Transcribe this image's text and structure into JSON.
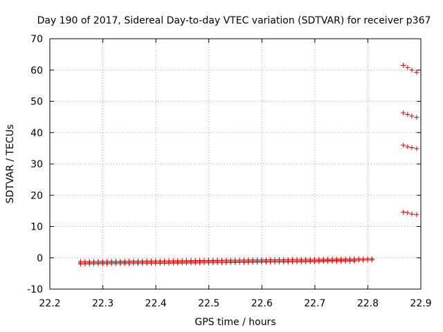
{
  "chart_data": {
    "type": "scatter",
    "title": "Day 190 of 2017, Sidereal Day-to-day VTEC variation (SDTVAR) for receiver p367",
    "xlabel": "GPS time / hours",
    "ylabel": "SDTVAR / TECUs",
    "xlim": [
      22.2,
      22.9
    ],
    "ylim": [
      -10,
      70
    ],
    "x_ticks": [
      "22.2",
      "22.3",
      "22.4",
      "22.5",
      "22.6",
      "22.7",
      "22.8",
      "22.9"
    ],
    "y_ticks": [
      "-10",
      "0",
      "10",
      "20",
      "30",
      "40",
      "50",
      "60",
      "70"
    ],
    "x_tick_values": [
      22.2,
      22.3,
      22.4,
      22.5,
      22.6,
      22.7,
      22.8,
      22.9
    ],
    "y_tick_values": [
      -10,
      0,
      10,
      20,
      30,
      40,
      50,
      60,
      70
    ],
    "grid": true,
    "marker": "plus",
    "color": "#cc0000",
    "series": [
      {
        "points": [
          [
            22.867,
            61.5
          ],
          [
            22.875,
            60.8
          ],
          [
            22.883,
            60.0
          ],
          [
            22.892,
            59.3
          ],
          [
            22.867,
            46.3
          ],
          [
            22.875,
            45.8
          ],
          [
            22.883,
            45.3
          ],
          [
            22.892,
            44.9
          ],
          [
            22.867,
            36.0
          ],
          [
            22.875,
            35.5
          ],
          [
            22.883,
            35.2
          ],
          [
            22.892,
            34.9
          ],
          [
            22.867,
            14.6
          ],
          [
            22.875,
            14.4
          ],
          [
            22.883,
            14.0
          ],
          [
            22.892,
            13.8
          ]
        ]
      },
      {
        "x_start": 22.258,
        "x_end": 22.808,
        "step": 0.00833,
        "y_start": -1.6,
        "y_end": -0.7
      },
      {
        "x_start": 22.258,
        "x_end": 22.808,
        "step": 0.00833,
        "y_start": -1.2,
        "y_end": -0.3
      },
      {
        "x_start": 22.258,
        "x_end": 22.775,
        "step": 0.00833,
        "y_start": -2.0,
        "y_end": -1.1
      }
    ]
  }
}
